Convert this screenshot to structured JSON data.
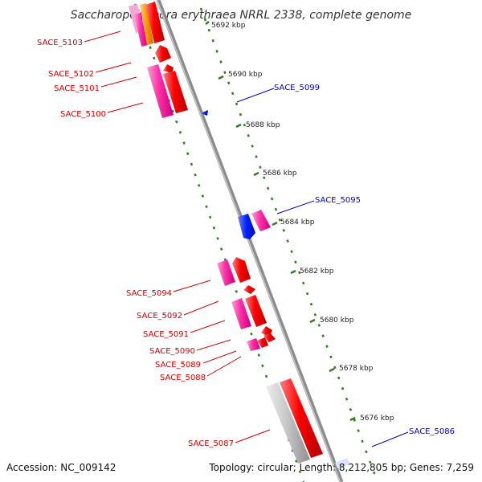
{
  "title": "Saccharopolyspora erythraea NRRL 2338, complete genome",
  "accession_text": "Accession: NC_009142",
  "summary_text": "Topology: circular; Length: 8,212,805 bp; Genes: 7,259",
  "colors": {
    "backbone": "#8c8c8c",
    "tick": "#2e7d1e",
    "label_red": "#d10000",
    "label_blue": "#0000cc",
    "gene_red": "#ff0000",
    "gene_pink": "#ff33aa",
    "gene_blue": "#0022ff",
    "gene_gray": "#c8c8c8",
    "gene_orange": "#ff9900"
  },
  "tick_labels": [
    "5692 kbp",
    "5690 kbp",
    "5688 kbp",
    "5686 kbp",
    "5684 kbp",
    "5682 kbp",
    "5680 kbp",
    "5678 kbp",
    "5676 kbp"
  ],
  "gene_labels_left": [
    "SACE_5103",
    "SACE_5102",
    "SACE_5101",
    "SACE_5100",
    "SACE_5094",
    "SACE_5092",
    "SACE_5091",
    "SACE_5090",
    "SACE_5089",
    "SACE_5088",
    "SACE_5087"
  ],
  "gene_labels_right": [
    "SACE_5099",
    "SACE_5095",
    "SACE_5086"
  ]
}
